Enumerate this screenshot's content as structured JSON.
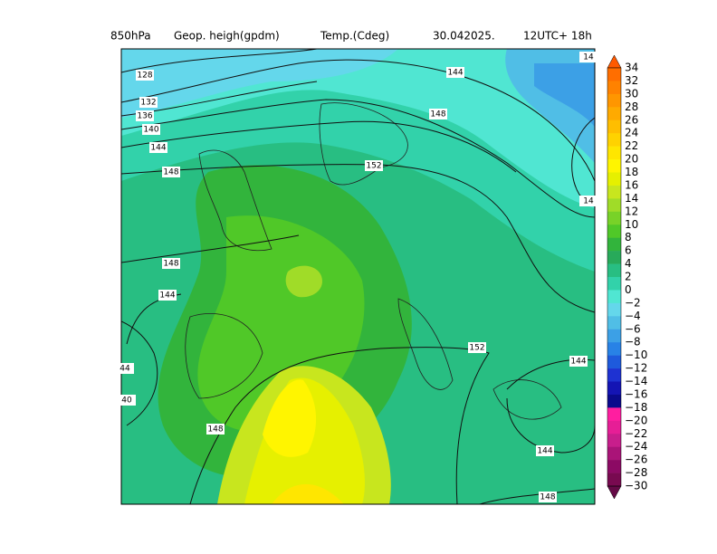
{
  "header": {
    "level": "850hPa",
    "field1": "Geop. heigh(gpdm)",
    "field2": "Temp.(Cdeg)",
    "date": "30.042025.",
    "time": "12UTC+ 18h"
  },
  "contour_labels": [
    "128",
    "132",
    "136",
    "140",
    "144",
    "148",
    "144",
    "148",
    "152",
    "148",
    "144",
    "44",
    "40",
    "148",
    "152",
    "144",
    "144",
    "148",
    "14",
    "14"
  ],
  "legend": {
    "labels": [
      "34",
      "32",
      "30",
      "28",
      "26",
      "24",
      "22",
      "20",
      "18",
      "16",
      "14",
      "12",
      "10",
      "8",
      "6",
      "4",
      "2",
      "0",
      "−2",
      "−4",
      "−6",
      "−8",
      "−10",
      "−12",
      "−14",
      "−16",
      "−18",
      "−20",
      "−22",
      "−24",
      "−26",
      "−28",
      "−30"
    ],
    "colors": [
      "#ff5a00",
      "#ff6e00",
      "#ff8200",
      "#ff9600",
      "#ffaa00",
      "#ffbe00",
      "#ffd200",
      "#ffe600",
      "#fff500",
      "#e6f000",
      "#c8e61e",
      "#a0dc28",
      "#78d228",
      "#50c828",
      "#32b43c",
      "#28aa5a",
      "#28be82",
      "#32d2aa",
      "#50e6d2",
      "#64d7eb",
      "#50bee6",
      "#3ca0e6",
      "#2882e6",
      "#1e5adc",
      "#1e32d2",
      "#1414b4",
      "#0a0a8c",
      "#ff1ea0",
      "#e61e96",
      "#c81e8c",
      "#aa1478",
      "#8c0a64",
      "#780a50",
      "#640a46"
    ]
  }
}
